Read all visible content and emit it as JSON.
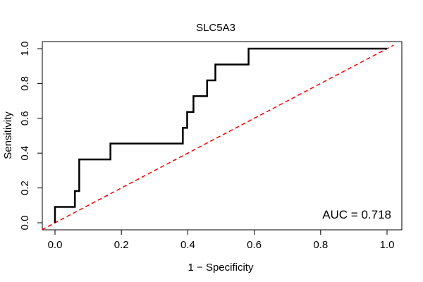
{
  "chart_data": {
    "type": "line",
    "title": "SLC5A3",
    "xlabel": "1 − Specificity",
    "ylabel": "Sensitivity",
    "xlim": [
      0,
      1
    ],
    "ylim": [
      0,
      1
    ],
    "x_ticks": [
      0.0,
      0.2,
      0.4,
      0.6,
      0.8,
      1.0
    ],
    "y_ticks": [
      0.0,
      0.2,
      0.4,
      0.6,
      0.8,
      1.0
    ],
    "x_tick_labels": [
      "0.0",
      "0.2",
      "0.4",
      "0.6",
      "0.8",
      "1.0"
    ],
    "y_tick_labels": [
      "0.0",
      "0.2",
      "0.4",
      "0.6",
      "0.8",
      "1.0"
    ],
    "annotation": "AUC = 0.718",
    "colors": {
      "roc": "#000000",
      "reference": "#ff0000"
    },
    "series": [
      {
        "name": "ROC",
        "style": "step",
        "x": [
          0.0,
          0.0,
          0.06,
          0.06,
          0.073,
          0.073,
          0.167,
          0.167,
          0.385,
          0.385,
          0.398,
          0.398,
          0.417,
          0.417,
          0.458,
          0.458,
          0.483,
          0.483,
          0.583,
          0.583,
          1.0
        ],
        "y": [
          0.0,
          0.091,
          0.091,
          0.182,
          0.182,
          0.364,
          0.364,
          0.455,
          0.455,
          0.545,
          0.545,
          0.636,
          0.636,
          0.727,
          0.727,
          0.818,
          0.818,
          0.909,
          0.909,
          1.0,
          1.0
        ]
      },
      {
        "name": "Reference",
        "style": "dashed",
        "x": [
          0,
          1
        ],
        "y": [
          0,
          1
        ]
      }
    ]
  }
}
